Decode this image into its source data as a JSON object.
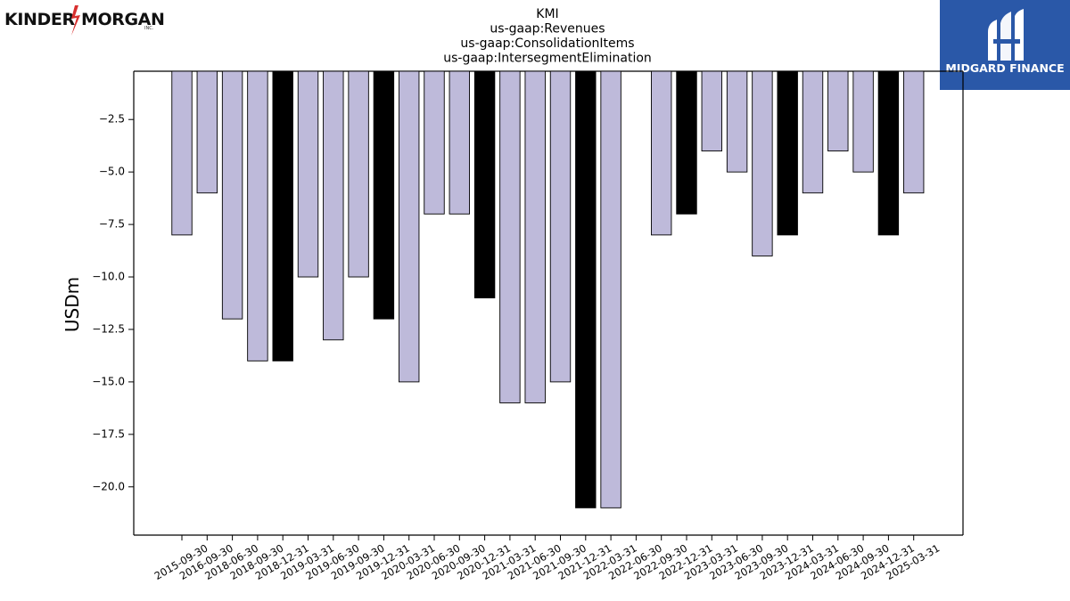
{
  "branding": {
    "left_logo_text_1": "KINDER",
    "left_logo_text_2": "MORGAN",
    "left_logo_suffix": "INC.",
    "left_logo_icon": "lightning-bolt-icon",
    "right_logo_text": "MIDGARD FINANCE",
    "right_logo_icon": "midgard-m-icon",
    "right_logo_bg": "#2a58a8"
  },
  "colors": {
    "bar_default": "#bebada",
    "bar_highlight": "#000000",
    "bar_edge": "#000000"
  },
  "chart_data": {
    "type": "bar",
    "title_lines": [
      "KMI",
      "us-gaap:Revenues",
      "us-gaap:ConsolidationItems",
      "us-gaap:IntersegmentElimination"
    ],
    "xlabel": "",
    "ylabel": "USDm",
    "ylim": [
      -22.3,
      -0.2
    ],
    "yticks": [
      -2.5,
      -5.0,
      -7.5,
      -10.0,
      -12.5,
      -15.0,
      -17.5,
      -20.0
    ],
    "ytick_labels": [
      "−2.5",
      "−5.0",
      "−7.5",
      "−10.0",
      "−12.5",
      "−15.0",
      "−17.5",
      "−20.0"
    ],
    "grid": false,
    "legend": "none",
    "categories": [
      "2015-09-30",
      "2016-09-30",
      "2018-06-30",
      "2018-09-30",
      "2018-12-31",
      "2019-03-31",
      "2019-06-30",
      "2019-09-30",
      "2019-12-31",
      "2020-03-31",
      "2020-06-30",
      "2020-09-30",
      "2020-12-31",
      "2021-03-31",
      "2021-06-30",
      "2021-09-30",
      "2021-12-31",
      "2022-03-31",
      "2022-06-30",
      "2022-09-30",
      "2022-12-31",
      "2023-03-31",
      "2023-06-30",
      "2023-09-30",
      "2023-12-31",
      "2024-03-31",
      "2024-06-30",
      "2024-09-30",
      "2024-12-31",
      "2025-03-31"
    ],
    "values": [
      -8,
      -6,
      -12,
      -14,
      -14,
      -10,
      -13,
      -10,
      -12,
      -15,
      -7,
      -7,
      -11,
      -16,
      -16,
      -15,
      -21,
      -21,
      null,
      -8,
      -7,
      -4,
      -5,
      -9,
      -8,
      -6,
      -4,
      -5,
      -8,
      -6
    ],
    "highlight": [
      false,
      false,
      false,
      false,
      true,
      false,
      false,
      false,
      true,
      false,
      false,
      false,
      true,
      false,
      false,
      false,
      true,
      false,
      false,
      false,
      true,
      false,
      false,
      false,
      true,
      false,
      false,
      false,
      true,
      false
    ]
  }
}
